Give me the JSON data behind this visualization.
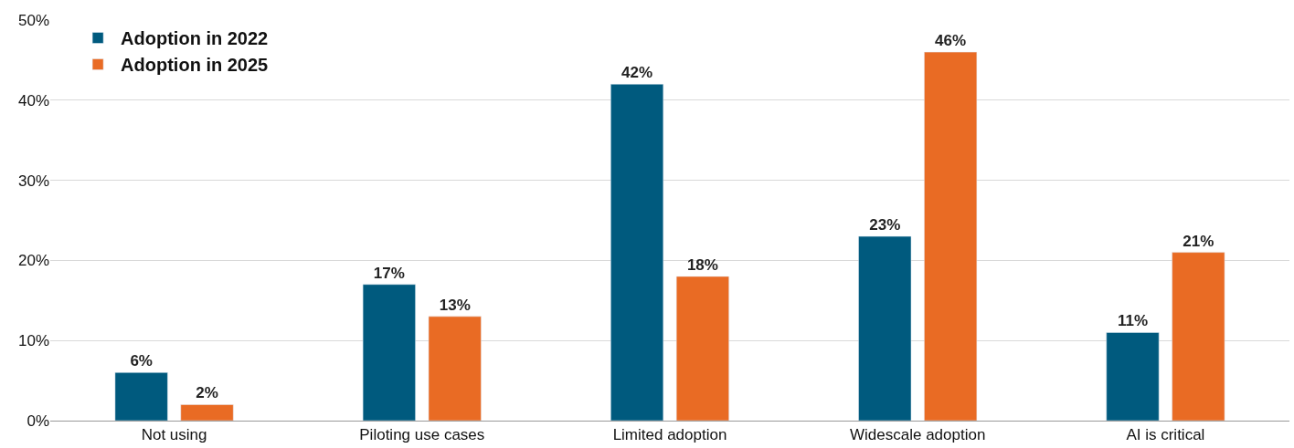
{
  "chart_data": {
    "type": "bar",
    "categories": [
      "Not using",
      "Piloting use cases",
      "Limited adoption",
      "Widescale adoption",
      "AI is critical"
    ],
    "series": [
      {
        "name": "Adoption in 2022",
        "color": "#005a7e",
        "values": [
          6,
          17,
          42,
          23,
          11
        ],
        "value_labels": [
          "6%",
          "17%",
          "42%",
          "23%",
          "11%"
        ]
      },
      {
        "name": "Adoption in 2025",
        "color": "#e96b24",
        "values": [
          2,
          13,
          18,
          46,
          21
        ],
        "value_labels": [
          "2%",
          "13%",
          "18%",
          "46%",
          "21%"
        ]
      }
    ],
    "ylim": [
      0,
      50
    ],
    "yticks": [
      {
        "value": 0,
        "label": "0%"
      },
      {
        "value": 10,
        "label": "10%"
      },
      {
        "value": 20,
        "label": "20%"
      },
      {
        "value": 30,
        "label": "30%"
      },
      {
        "value": 40,
        "label": "40%"
      },
      {
        "value": 50,
        "label": "50%"
      }
    ],
    "grid": "y",
    "legend": "top left"
  }
}
